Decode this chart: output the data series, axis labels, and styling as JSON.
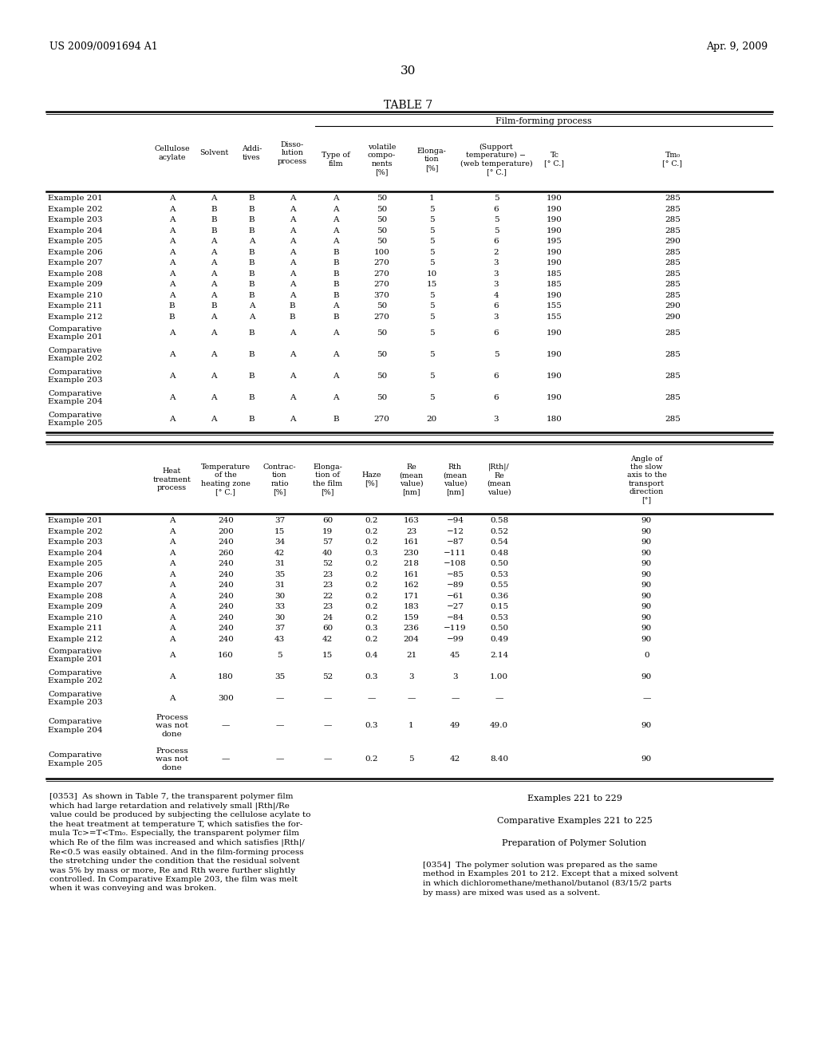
{
  "header_left": "US 2009/0091694 A1",
  "header_right": "Apr. 9, 2009",
  "page_number": "30",
  "table_title": "TABLE 7",
  "table1_header_group": "Film-forming process",
  "table1_columns": [
    "Cellulose\nacylate",
    "Solvent",
    "Addi-\ntives",
    "Disso-\nlution\nprocess",
    "Type of\nfilm",
    "volatile\ncompo-\nnents\n[%]",
    "Elonga-\ntion\n[%]",
    "(Support\ntemperature) −\n(web temperature)\n[° C.]",
    "Tc\n[° C.]",
    "Tm₀\n[° C.]"
  ],
  "table1_rows": [
    [
      "Example 201",
      "A",
      "A",
      "B",
      "A",
      "A",
      "50",
      "1",
      "5",
      "190",
      "285"
    ],
    [
      "Example 202",
      "A",
      "B",
      "B",
      "A",
      "A",
      "50",
      "5",
      "6",
      "190",
      "285"
    ],
    [
      "Example 203",
      "A",
      "B",
      "B",
      "A",
      "A",
      "50",
      "5",
      "5",
      "190",
      "285"
    ],
    [
      "Example 204",
      "A",
      "B",
      "B",
      "A",
      "A",
      "50",
      "5",
      "5",
      "190",
      "285"
    ],
    [
      "Example 205",
      "A",
      "A",
      "A",
      "A",
      "A",
      "50",
      "5",
      "6",
      "195",
      "290"
    ],
    [
      "Example 206",
      "A",
      "A",
      "B",
      "A",
      "B",
      "100",
      "5",
      "2",
      "190",
      "285"
    ],
    [
      "Example 207",
      "A",
      "A",
      "B",
      "A",
      "B",
      "270",
      "5",
      "3",
      "190",
      "285"
    ],
    [
      "Example 208",
      "A",
      "A",
      "B",
      "A",
      "B",
      "270",
      "10",
      "3",
      "185",
      "285"
    ],
    [
      "Example 209",
      "A",
      "A",
      "B",
      "A",
      "B",
      "270",
      "15",
      "3",
      "185",
      "285"
    ],
    [
      "Example 210",
      "A",
      "A",
      "B",
      "A",
      "B",
      "370",
      "5",
      "4",
      "190",
      "285"
    ],
    [
      "Example 211",
      "B",
      "B",
      "A",
      "B",
      "A",
      "50",
      "5",
      "6",
      "155",
      "290"
    ],
    [
      "Example 212",
      "B",
      "A",
      "A",
      "B",
      "B",
      "270",
      "5",
      "3",
      "155",
      "290"
    ],
    [
      "Comparative\nExample 201",
      "A",
      "A",
      "B",
      "A",
      "A",
      "50",
      "5",
      "6",
      "190",
      "285"
    ],
    [
      "Comparative\nExample 202",
      "A",
      "A",
      "B",
      "A",
      "A",
      "50",
      "5",
      "5",
      "190",
      "285"
    ],
    [
      "Comparative\nExample 203",
      "A",
      "A",
      "B",
      "A",
      "A",
      "50",
      "5",
      "6",
      "190",
      "285"
    ],
    [
      "Comparative\nExample 204",
      "A",
      "A",
      "B",
      "A",
      "A",
      "50",
      "5",
      "6",
      "190",
      "285"
    ],
    [
      "Comparative\nExample 205",
      "A",
      "A",
      "B",
      "A",
      "B",
      "270",
      "20",
      "3",
      "180",
      "285"
    ]
  ],
  "table2_columns": [
    "Heat\ntreatment\nprocess",
    "Temperature\nof the\nheating zone\n[° C.]",
    "Contrac-\ntion\nratio\n[%]",
    "Elonga-\ntion of\nthe film\n[%]",
    "Haze\n[%]",
    "Re\n(mean\nvalue)\n[nm]",
    "Rth\n(mean\nvalue)\n[nm]",
    "|Rth|/\nRe\n(mean\nvalue)",
    "Angle of\nthe slow\naxis to the\ntransport\ndirection\n[°]"
  ],
  "table2_rows": [
    [
      "Example 201",
      "A",
      "240",
      "37",
      "60",
      "0.2",
      "163",
      "−94",
      "0.58",
      "90"
    ],
    [
      "Example 202",
      "A",
      "200",
      "15",
      "19",
      "0.2",
      "23",
      "−12",
      "0.52",
      "90"
    ],
    [
      "Example 203",
      "A",
      "240",
      "34",
      "57",
      "0.2",
      "161",
      "−87",
      "0.54",
      "90"
    ],
    [
      "Example 204",
      "A",
      "260",
      "42",
      "40",
      "0.3",
      "230",
      "−111",
      "0.48",
      "90"
    ],
    [
      "Example 205",
      "A",
      "240",
      "31",
      "52",
      "0.2",
      "218",
      "−108",
      "0.50",
      "90"
    ],
    [
      "Example 206",
      "A",
      "240",
      "35",
      "23",
      "0.2",
      "161",
      "−85",
      "0.53",
      "90"
    ],
    [
      "Example 207",
      "A",
      "240",
      "31",
      "23",
      "0.2",
      "162",
      "−89",
      "0.55",
      "90"
    ],
    [
      "Example 208",
      "A",
      "240",
      "30",
      "22",
      "0.2",
      "171",
      "−61",
      "0.36",
      "90"
    ],
    [
      "Example 209",
      "A",
      "240",
      "33",
      "23",
      "0.2",
      "183",
      "−27",
      "0.15",
      "90"
    ],
    [
      "Example 210",
      "A",
      "240",
      "30",
      "24",
      "0.2",
      "159",
      "−84",
      "0.53",
      "90"
    ],
    [
      "Example 211",
      "A",
      "240",
      "37",
      "60",
      "0.3",
      "236",
      "−119",
      "0.50",
      "90"
    ],
    [
      "Example 212",
      "A",
      "240",
      "43",
      "42",
      "0.2",
      "204",
      "−99",
      "0.49",
      "90"
    ],
    [
      "Comparative\nExample 201",
      "A",
      "160",
      "5",
      "15",
      "0.4",
      "21",
      "45",
      "2.14",
      "0"
    ],
    [
      "Comparative\nExample 202",
      "A",
      "180",
      "35",
      "52",
      "0.3",
      "3",
      "3",
      "1.00",
      "90"
    ],
    [
      "Comparative\nExample 203",
      "A",
      "300",
      "—",
      "—",
      "—",
      "—",
      "—",
      "—",
      "—"
    ],
    [
      "Comparative\nExample 204",
      "Process\nwas not\ndone",
      "—",
      "—",
      "—",
      "0.3",
      "1",
      "49",
      "49.0",
      "90"
    ],
    [
      "Comparative\nExample 205",
      "Process\nwas not\ndone",
      "—",
      "—",
      "—",
      "0.2",
      "5",
      "42",
      "8.40",
      "90"
    ]
  ],
  "left_col_text_353": "[0353]  As shown in Table 7, the transparent polymer film\nwhich had large retardation and relatively small |Rth|/Re\nvalue could be produced by subjecting the cellulose acylate to\nthe heat treatment at temperature T, which satisfies the for-\nmula Tc>=T<Tm₀. Especially, the transparent polymer film\nwhich Re of the film was increased and which satisfies |Rth|/\nRe<0.5 was easily obtained. And in the film-forming process\nthe stretching under the condition that the residual solvent\nwas 5% by mass or more, Re and Rth were further slightly\ncontrolled. In Comparative Example 203, the film was melt\nwhen it was conveying and was broken.",
  "right_col_line1": "Examples 221 to 229",
  "right_col_line2": "Comparative Examples 221 to 225",
  "right_col_line3": "Preparation of Polymer Solution",
  "right_col_text_354": "[0354]  The polymer solution was prepared as the same\nmethod in Examples 201 to 212. Except that a mixed solvent\nin which dichloromethane/methanol/butanol (83/15/2 parts\nby mass) are mixed was used as a solvent.",
  "bg_color": "#ffffff",
  "text_color": "#000000"
}
